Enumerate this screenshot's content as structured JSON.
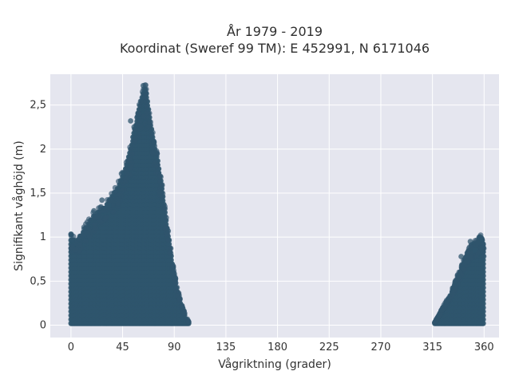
{
  "chart_data": {
    "type": "scatter",
    "title": "År 1979 - 2019",
    "subtitle": "Koordinat (Sweref 99 TM): E 452991, N 6171046",
    "xlabel": "Vågriktning (grader)",
    "ylabel": "Signifikant våghöjd (m)",
    "xlim": [
      -18,
      373
    ],
    "ylim": [
      -0.14,
      2.85
    ],
    "x_ticks": [
      0,
      45,
      90,
      135,
      180,
      225,
      270,
      315,
      360
    ],
    "x_tick_labels": [
      "0",
      "45",
      "90",
      "135",
      "180",
      "225",
      "270",
      "315",
      "360"
    ],
    "y_ticks": [
      0,
      0.5,
      1,
      1.5,
      2,
      2.5
    ],
    "y_tick_labels": [
      "0",
      "0,5",
      "1",
      "1,5",
      "2",
      "2,5"
    ],
    "grid": true,
    "marker_color": "#2f556d",
    "plot_background": "#e5e6ef",
    "clusters": [
      {
        "envelope_x": [
          0,
          5,
          10,
          15,
          20,
          25,
          30,
          35,
          40,
          45,
          50,
          55,
          58,
          62,
          65,
          68,
          72,
          76,
          80,
          84,
          88,
          92,
          96,
          100,
          103
        ],
        "envelope_y": [
          1.0,
          0.95,
          1.05,
          1.15,
          1.25,
          1.3,
          1.35,
          1.45,
          1.55,
          1.7,
          1.9,
          2.2,
          2.4,
          2.6,
          2.7,
          2.4,
          2.1,
          1.85,
          1.5,
          1.1,
          0.75,
          0.45,
          0.25,
          0.1,
          0.03
        ]
      },
      {
        "envelope_x": [
          317,
          320,
          325,
          330,
          335,
          340,
          345,
          350,
          355,
          358,
          360
        ],
        "envelope_y": [
          0.03,
          0.1,
          0.22,
          0.33,
          0.48,
          0.65,
          0.8,
          0.9,
          0.95,
          1.0,
          0.9
        ]
      }
    ],
    "outliers": [
      {
        "x": 0,
        "y": 1.03
      },
      {
        "x": 20,
        "y": 1.3
      },
      {
        "x": 27,
        "y": 1.42
      },
      {
        "x": 33,
        "y": 1.36
      },
      {
        "x": 52,
        "y": 2.32
      },
      {
        "x": 55,
        "y": 2.25
      },
      {
        "x": 63,
        "y": 2.72
      },
      {
        "x": 64,
        "y": 2.68
      },
      {
        "x": 44,
        "y": 1.72
      },
      {
        "x": 356,
        "y": 1.0
      },
      {
        "x": 358,
        "y": 0.98
      },
      {
        "x": 348,
        "y": 0.95
      },
      {
        "x": 340,
        "y": 0.78
      },
      {
        "x": 352,
        "y": 0.85
      }
    ]
  }
}
